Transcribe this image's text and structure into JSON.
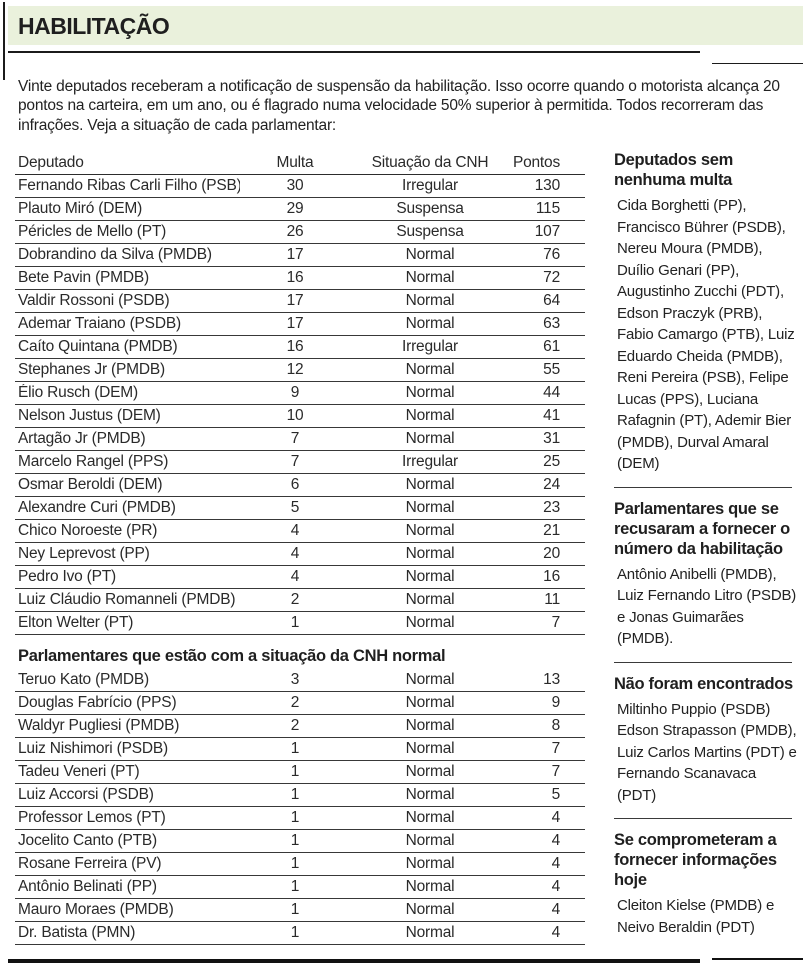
{
  "colors": {
    "band": "#eaf1dc",
    "text": "#232323",
    "rule": "#1b1b1b",
    "row_line": "#383838"
  },
  "header": {
    "title": "HABILITAÇÃO"
  },
  "intro": "Vinte deputados receberam a notificação de suspensão da habilitação. Isso ocorre quando o motorista alcança 20 pontos na carteira, em um ano, ou é flagrado numa velocidade 50% superior à permitida. Todos recorreram das infrações. Veja a situação de cada parlamentar:",
  "table": {
    "headers": [
      "Deputado",
      "Multa",
      "Situação da CNH",
      "Pontos"
    ],
    "rows": [
      [
        "Fernando Ribas Carli Filho (PSB)",
        "30",
        "Irregular",
        "130"
      ],
      [
        "Plauto Miró (DEM)",
        "29",
        "Suspensa",
        "115"
      ],
      [
        "Péricles de Mello (PT)",
        "26",
        "Suspensa",
        "107"
      ],
      [
        "Dobrandino da Silva (PMDB)",
        "17",
        "Normal",
        "76"
      ],
      [
        "Bete Pavin (PMDB)",
        "16",
        "Normal",
        "72"
      ],
      [
        "Valdir Rossoni (PSDB)",
        "17",
        "Normal",
        "64"
      ],
      [
        "Ademar Traiano (PSDB)",
        "17",
        "Normal",
        "63"
      ],
      [
        "Caíto Quintana (PMDB)",
        "16",
        "Irregular",
        "61"
      ],
      [
        "Stephanes Jr (PMDB)",
        "12",
        "Normal",
        "55"
      ],
      [
        "Élio Rusch (DEM)",
        "9",
        "Normal",
        "44"
      ],
      [
        "Nelson Justus (DEM)",
        "10",
        "Normal",
        "41"
      ],
      [
        "Artagão Jr (PMDB)",
        "7",
        "Normal",
        "31"
      ],
      [
        "Marcelo Rangel (PPS)",
        "7",
        "Irregular",
        "25"
      ],
      [
        "Osmar Beroldi (DEM)",
        "6",
        "Normal",
        "24"
      ],
      [
        "Alexandre Curi (PMDB)",
        "5",
        "Normal",
        "23"
      ],
      [
        "Chico Noroeste (PR)",
        "4",
        "Normal",
        "21"
      ],
      [
        "Ney Leprevost (PP)",
        "4",
        "Normal",
        "20"
      ],
      [
        "Pedro Ivo (PT)",
        "4",
        "Normal",
        "16"
      ],
      [
        "Luiz Cláudio Romanneli (PMDB)",
        "2",
        "Normal",
        "11"
      ],
      [
        "Elton Welter (PT)",
        "1",
        "Normal",
        "7"
      ]
    ]
  },
  "section2": {
    "title": "Parlamentares que estão com a situação da CNH normal",
    "rows": [
      [
        "Teruo Kato (PMDB)",
        "3",
        "Normal",
        "13"
      ],
      [
        "Douglas Fabrício (PPS)",
        "2",
        "Normal",
        "9"
      ],
      [
        "Waldyr Pugliesi (PMDB)",
        "2",
        "Normal",
        "8"
      ],
      [
        "Luiz Nishimori (PSDB)",
        "1",
        "Normal",
        "7"
      ],
      [
        "Tadeu Veneri (PT)",
        "1",
        "Normal",
        "7"
      ],
      [
        "Luiz Accorsi (PSDB)",
        "1",
        "Normal",
        "5"
      ],
      [
        "Professor Lemos (PT)",
        "1",
        "Normal",
        "4"
      ],
      [
        "Jocelito Canto (PTB)",
        "1",
        "Normal",
        "4"
      ],
      [
        "Rosane Ferreira (PV)",
        "1",
        "Normal",
        "4"
      ],
      [
        "Antônio Belinati (PP)",
        "1",
        "Normal",
        "4"
      ],
      [
        "Mauro Moraes (PMDB)",
        "1",
        "Normal",
        "4"
      ],
      [
        "Dr. Batista (PMN)",
        "1",
        "Normal",
        "4"
      ]
    ]
  },
  "sidebar": {
    "sections": [
      {
        "title": "Deputados sem nenhuma multa",
        "body": "Cida Borghetti (PP), Francisco Bührer (PSDB), Nereu Moura (PMDB), Duílio Genari (PP), Augustinho Zucchi (PDT), Edson Praczyk (PRB), Fabio Camargo (PTB), Luiz Eduardo Cheida (PMDB), Reni Pereira (PSB), Felipe Lucas (PPS), Luciana Rafagnin (PT), Ademir Bier (PMDB), Durval Amaral (DEM)"
      },
      {
        "title": "Parlamentares que se recusaram a fornecer o número da habilitação",
        "body": "Antônio Anibelli (PMDB), Luiz Fernando Litro (PSDB) e Jonas Guimarães (PMDB)."
      },
      {
        "title": "Não foram encontrados",
        "body": "Miltinho Puppio (PSDB) Edson Strapasson (PMDB), Luiz Carlos Martins (PDT) e Fernando Scanavaca (PDT)"
      },
      {
        "title": "Se comprometeram a fornecer informações hoje",
        "body": "Cleiton Kielse (PMDB) e Neivo Beraldin (PDT)"
      }
    ]
  }
}
